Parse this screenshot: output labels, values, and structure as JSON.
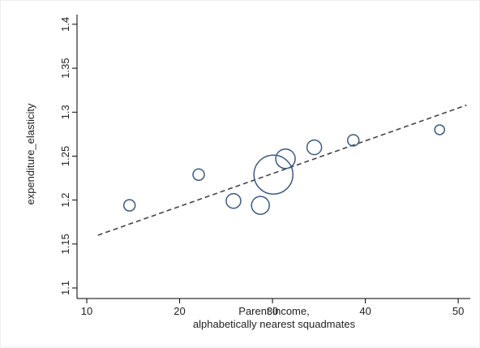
{
  "chart_data": {
    "type": "scatter",
    "xlabel": [
      "Parent income,",
      "alphabetically nearest squadmates"
    ],
    "ylabel": "expenditure_elasticity",
    "x": [
      14.6,
      22.05,
      25.8,
      28.7,
      30.1,
      31.4,
      34.5,
      38.7,
      48.0
    ],
    "y": [
      1.194,
      1.229,
      1.199,
      1.194,
      1.229,
      1.247,
      1.26,
      1.268,
      1.28
    ],
    "sizes": [
      49,
      49,
      81,
      121,
      576,
      144,
      81,
      49,
      36
    ],
    "color": "#3d5a80",
    "fit": {
      "x": [
        11.2,
        50.9
      ],
      "y": [
        1.16,
        1.308
      ],
      "color": "#444444"
    },
    "xlim": [
      8.95,
      51.3
    ],
    "ylim": [
      1.088,
      1.411
    ],
    "xticks": [
      10,
      20,
      30,
      40,
      50
    ],
    "yticks": [
      1.1,
      1.15,
      1.2,
      1.25,
      1.3,
      1.35,
      1.4
    ]
  }
}
